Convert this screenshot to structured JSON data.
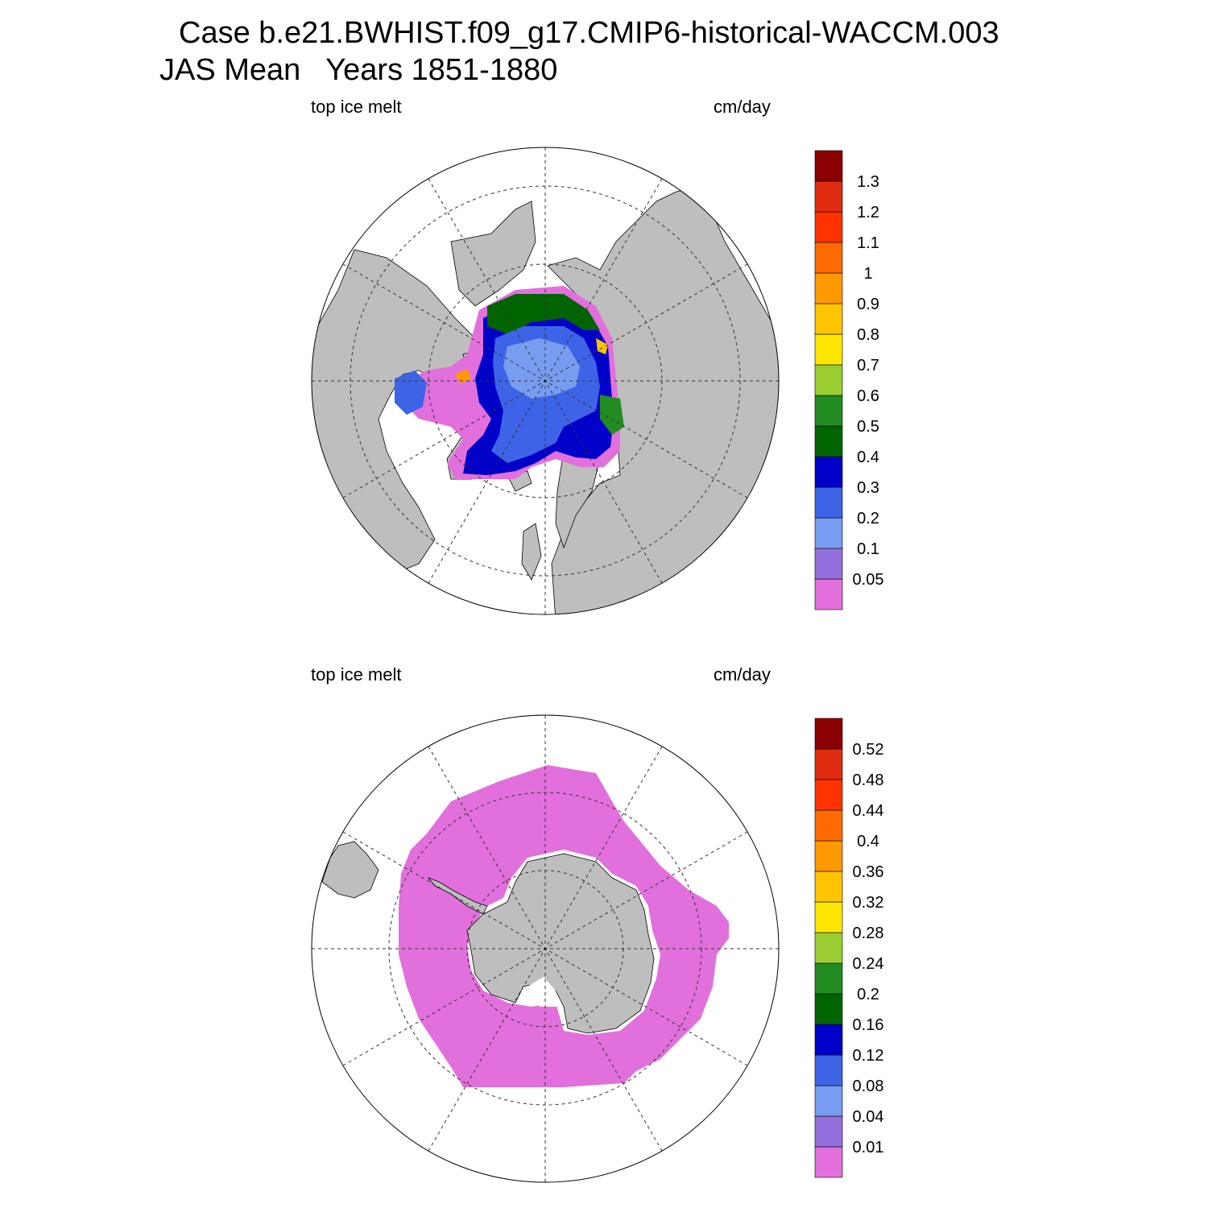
{
  "title": {
    "line1": "Case b.e21.BWHIST.f09_g17.CMIP6-historical-WACCM.003",
    "line2": "JAS Mean   Years 1851-1880"
  },
  "panels": [
    {
      "name": "north",
      "label_left": "top ice melt",
      "label_right": "cm/day",
      "colorbar": {
        "colors": [
          "#e270dc",
          "#9370db",
          "#789cf0",
          "#3d64e6",
          "#0000c8",
          "#006400",
          "#228b22",
          "#9acd32",
          "#ffe600",
          "#ffc400",
          "#ff9900",
          "#ff6a00",
          "#ff3300",
          "#e02c10",
          "#8b0000"
        ],
        "levels": [
          "0.05",
          "0.1",
          "0.2",
          "0.3",
          "0.4",
          "0.5",
          "0.6",
          "0.7",
          "0.8",
          "0.9",
          "1",
          "1.1",
          "1.2",
          "1.3"
        ]
      }
    },
    {
      "name": "south",
      "label_left": "top ice melt",
      "label_right": "cm/day",
      "colorbar": {
        "colors": [
          "#e270dc",
          "#9370db",
          "#789cf0",
          "#3d64e6",
          "#0000c8",
          "#006400",
          "#228b22",
          "#9acd32",
          "#ffe600",
          "#ffc400",
          "#ff9900",
          "#ff6a00",
          "#ff3300",
          "#e02c10",
          "#8b0000"
        ],
        "levels": [
          "0.01",
          "0.04",
          "0.08",
          "0.12",
          "0.16",
          "0.2",
          "0.24",
          "0.28",
          "0.32",
          "0.36",
          "0.4",
          "0.44",
          "0.48",
          "0.52"
        ]
      }
    }
  ],
  "colors": {
    "land": "#bebebe",
    "ocean": "#ffffff",
    "grid": "#333333"
  }
}
